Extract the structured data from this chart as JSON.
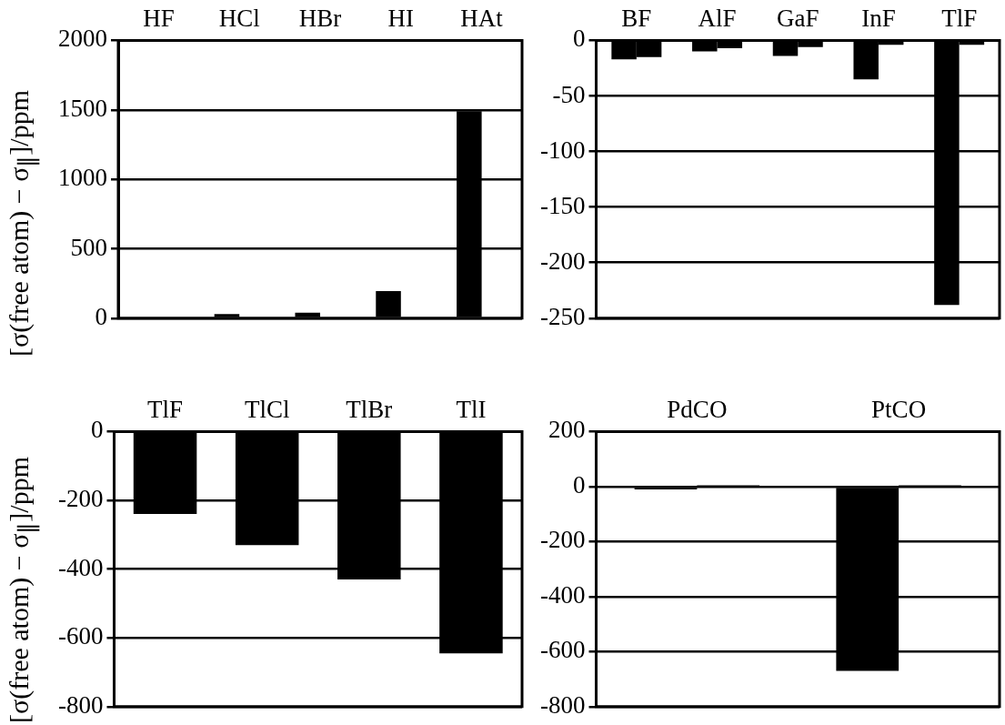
{
  "chart_data": [
    {
      "type": "bar",
      "ylabel": "[σ(free atom) − σ$_{∥}$]/ppm",
      "categories": [
        "HF",
        "HCl",
        "HBr",
        "HI",
        "HAt"
      ],
      "series": [
        {
          "color": "#000000",
          "values": [
            0,
            30,
            40,
            195,
            1490
          ]
        },
        {
          "color": "#000000",
          "values": [
            0,
            null,
            null,
            null,
            null
          ]
        }
      ],
      "ylim": [
        0,
        2000
      ],
      "yticks": [
        0,
        500,
        1000,
        1500,
        2000
      ],
      "grid": "y",
      "legend": false
    },
    {
      "type": "bar",
      "categories": [
        "BF",
        "AlF",
        "GaF",
        "InF",
        "TlF"
      ],
      "series": [
        {
          "color": "#000000",
          "values": [
            -17,
            -10,
            -14,
            -35,
            -238
          ]
        },
        {
          "color": "#000000",
          "values": [
            -15,
            -7,
            -6,
            -4,
            -4
          ]
        }
      ],
      "ylim": [
        -250,
        0
      ],
      "yticks": [
        -250,
        -200,
        -150,
        -100,
        -50,
        0
      ],
      "grid": "y",
      "legend": false
    },
    {
      "type": "bar",
      "ylabel": "[σ(free atom) − σ$_{∥}$]/ppm",
      "categories": [
        "TlF",
        "TlCl",
        "TlBr",
        "TlI"
      ],
      "series": [
        {
          "color": "#000000",
          "values": [
            -240,
            -330,
            -430,
            -645
          ]
        }
      ],
      "ylim": [
        -800,
        0
      ],
      "yticks": [
        -800,
        -600,
        -400,
        -200,
        0
      ],
      "grid": "y",
      "legend": false
    },
    {
      "type": "bar",
      "categories": [
        "PdCO",
        "PtCO"
      ],
      "series": [
        {
          "color": "#000000",
          "values": [
            -10,
            -670
          ]
        },
        {
          "color": "#000000",
          "values": [
            5,
            5
          ]
        }
      ],
      "ylim": [
        -800,
        200
      ],
      "yticks": [
        -800,
        -600,
        -400,
        -200,
        0,
        200
      ],
      "grid": "y",
      "legend": false
    }
  ]
}
